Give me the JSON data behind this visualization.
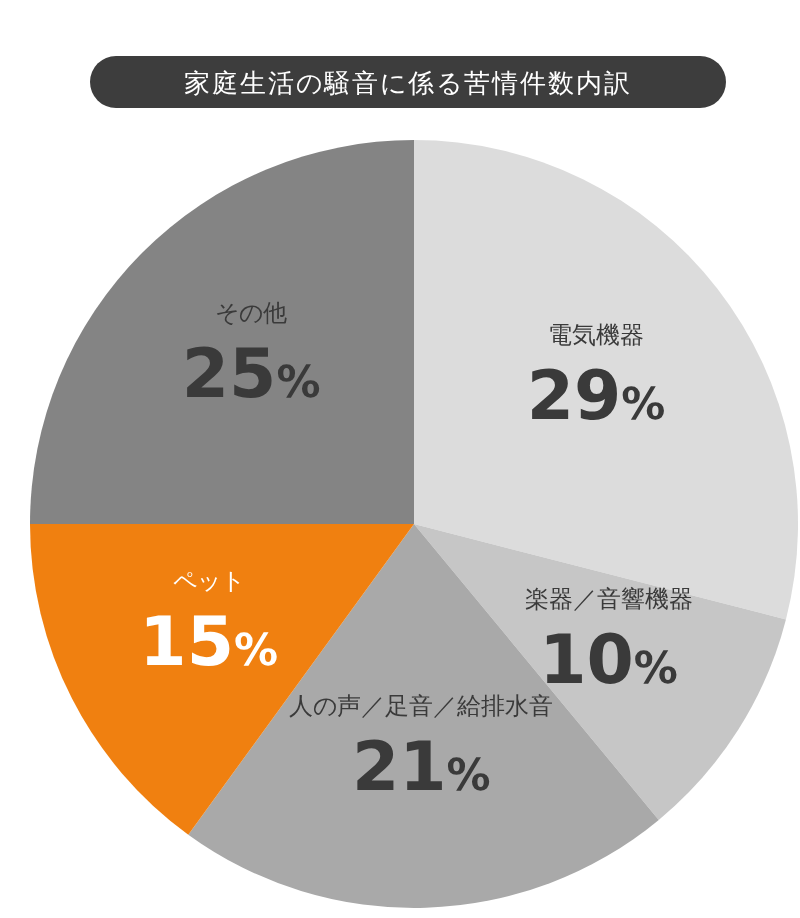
{
  "chart_data": {
    "type": "pie",
    "title": "家庭生活の騒音に係る苦情件数内訳",
    "categories": [
      "電気機器",
      "楽器／音響機器",
      "人の声／足音／給排水音",
      "ペット",
      "その他"
    ],
    "values": [
      29,
      10,
      21,
      15,
      25
    ],
    "colors": [
      "#dcdcdc",
      "#c6c6c6",
      "#a9a9a9",
      "#f08010",
      "#848484"
    ],
    "value_labels": [
      "29%",
      "10%",
      "21%",
      "15%",
      "25%"
    ]
  }
}
